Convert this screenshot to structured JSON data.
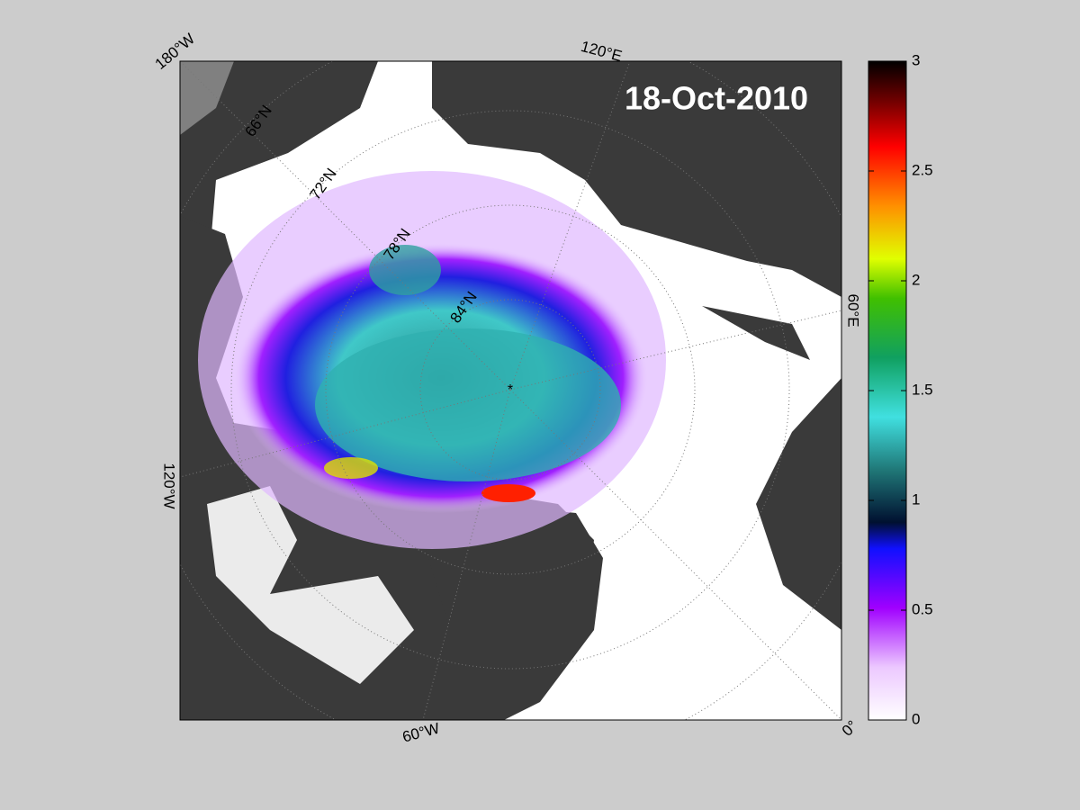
{
  "map": {
    "title": "18-Oct-2010",
    "longitude_labels": [
      "180°W",
      "120°E",
      "60°E",
      "0°",
      "60°W",
      "120°W"
    ],
    "latitude_labels": [
      "66°N",
      "72°N",
      "78°N",
      "84°N"
    ]
  },
  "colorbar": {
    "lim": [
      0,
      3
    ],
    "ticks": [
      0,
      0.5,
      1,
      1.5,
      2,
      2.5,
      3
    ]
  }
}
